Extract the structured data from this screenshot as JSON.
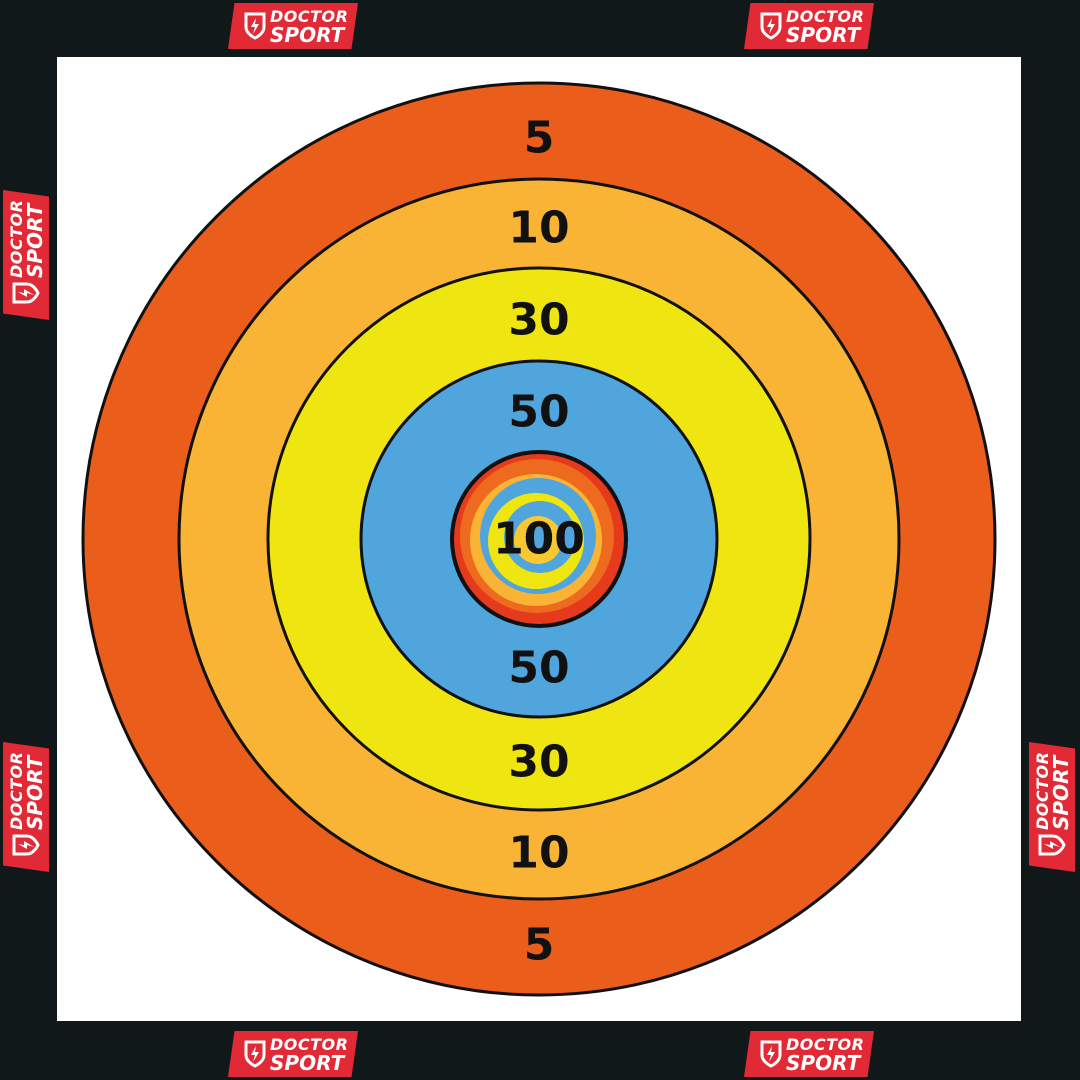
{
  "brand": {
    "line1": "DOCTOR",
    "line2": "SPORT",
    "color": "#e12a36"
  },
  "target": {
    "rings": [
      {
        "points": "5",
        "color": "#ea5d1b"
      },
      {
        "points": "10",
        "color": "#f9b435"
      },
      {
        "points": "30",
        "color": "#efe611"
      },
      {
        "points": "50",
        "color": "#4fa5dc"
      },
      {
        "points": "100",
        "colors": [
          "#e9501c",
          "#f9b435",
          "#efe611",
          "#4fa5dc"
        ]
      }
    ],
    "labels": {
      "top": [
        "5",
        "10",
        "30",
        "50"
      ],
      "center": "100",
      "bottom": [
        "50",
        "30",
        "10",
        "5"
      ]
    }
  }
}
